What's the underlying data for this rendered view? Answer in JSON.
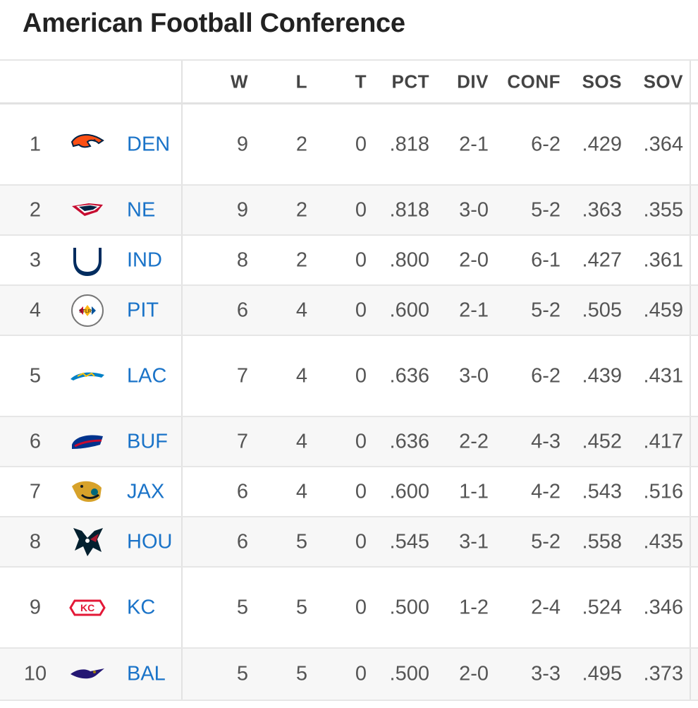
{
  "page": {
    "title": "American Football Conference"
  },
  "columns": [
    "W",
    "L",
    "T",
    "PCT",
    "DIV",
    "CONF",
    "SOS",
    "SOV"
  ],
  "rows": [
    {
      "rank": "1",
      "team": "DEN",
      "logo_icon": "broncos-logo-icon",
      "w": "9",
      "l": "2",
      "t": "0",
      "pct": ".818",
      "div": "2-1",
      "conf": "6-2",
      "sos": ".429",
      "sov": ".364",
      "logo_color": "#fb4f14"
    },
    {
      "rank": "2",
      "team": "NE",
      "logo_icon": "patriots-logo-icon",
      "w": "9",
      "l": "2",
      "t": "0",
      "pct": ".818",
      "div": "3-0",
      "conf": "5-2",
      "sos": ".363",
      "sov": ".355",
      "logo_color": "#002244"
    },
    {
      "rank": "3",
      "team": "IND",
      "logo_icon": "colts-logo-icon",
      "w": "8",
      "l": "2",
      "t": "0",
      "pct": ".800",
      "div": "2-0",
      "conf": "6-1",
      "sos": ".427",
      "sov": ".361",
      "logo_color": "#002c5f"
    },
    {
      "rank": "4",
      "team": "PIT",
      "logo_icon": "steelers-logo-icon",
      "w": "6",
      "l": "4",
      "t": "0",
      "pct": ".600",
      "div": "2-1",
      "conf": "5-2",
      "sos": ".505",
      "sov": ".459",
      "logo_color": "#ffb612"
    },
    {
      "rank": "5",
      "team": "LAC",
      "logo_icon": "chargers-logo-icon",
      "w": "7",
      "l": "4",
      "t": "0",
      "pct": ".636",
      "div": "3-0",
      "conf": "6-2",
      "sos": ".439",
      "sov": ".431",
      "logo_color": "#0080c6"
    },
    {
      "rank": "6",
      "team": "BUF",
      "logo_icon": "bills-logo-icon",
      "w": "7",
      "l": "4",
      "t": "0",
      "pct": ".636",
      "div": "2-2",
      "conf": "4-3",
      "sos": ".452",
      "sov": ".417",
      "logo_color": "#00338d"
    },
    {
      "rank": "7",
      "team": "JAX",
      "logo_icon": "jaguars-logo-icon",
      "w": "6",
      "l": "4",
      "t": "0",
      "pct": ".600",
      "div": "1-1",
      "conf": "4-2",
      "sos": ".543",
      "sov": ".516",
      "logo_color": "#d7a22a"
    },
    {
      "rank": "8",
      "team": "HOU",
      "logo_icon": "texans-logo-icon",
      "w": "6",
      "l": "5",
      "t": "0",
      "pct": ".545",
      "div": "3-1",
      "conf": "5-2",
      "sos": ".558",
      "sov": ".435",
      "logo_color": "#03202f"
    },
    {
      "rank": "9",
      "team": "KC",
      "logo_icon": "chiefs-logo-icon",
      "w": "5",
      "l": "5",
      "t": "0",
      "pct": ".500",
      "div": "1-2",
      "conf": "2-4",
      "sos": ".524",
      "sov": ".346",
      "logo_color": "#e31837"
    },
    {
      "rank": "10",
      "team": "BAL",
      "logo_icon": "ravens-logo-icon",
      "w": "5",
      "l": "5",
      "t": "0",
      "pct": ".500",
      "div": "2-0",
      "conf": "3-3",
      "sos": ".495",
      "sov": ".373",
      "logo_color": "#241773"
    }
  ]
}
